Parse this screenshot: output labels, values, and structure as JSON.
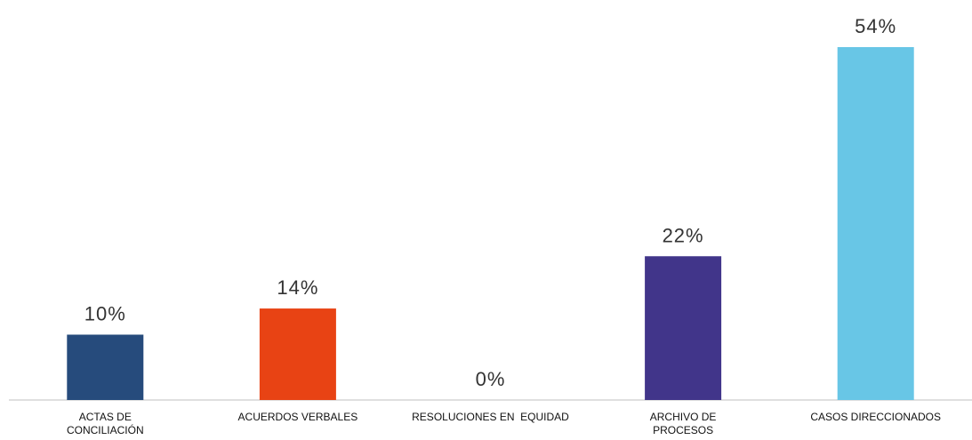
{
  "chart_data": {
    "type": "bar",
    "categories": [
      "ACTAS DE CONCILIACIÓN",
      "ACUERDOS VERBALES",
      "RESOLUCIONES EN  EQUIDAD",
      "ARCHIVO DE PROCESOS",
      "CASOS DIRECCIONADOS"
    ],
    "values": [
      10,
      14,
      0,
      22,
      54
    ],
    "value_labels": [
      "10%",
      "14%",
      "0%",
      "22%",
      "54%"
    ],
    "colors": [
      "#264b7c",
      "#e84314",
      "#a5a5a5",
      "#41358a",
      "#68c6e6"
    ]
  }
}
